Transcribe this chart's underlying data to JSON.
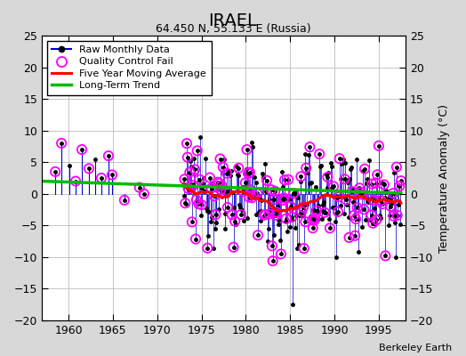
{
  "title": "IRAEL",
  "subtitle": "64.450 N, 55.133 E (Russia)",
  "ylabel_right": "Temperature Anomaly (°C)",
  "credit": "Berkeley Earth",
  "xlim": [
    1957,
    1998
  ],
  "ylim": [
    -20,
    25
  ],
  "yticks_left": [
    -20,
    -15,
    -10,
    -5,
    0,
    5,
    10,
    15,
    20,
    25
  ],
  "yticks_right": [
    -20,
    -15,
    -10,
    -5,
    0,
    5,
    10,
    15,
    20,
    25
  ],
  "xticks": [
    1960,
    1965,
    1970,
    1975,
    1980,
    1985,
    1990,
    1995
  ],
  "background_color": "#d8d8d8",
  "plot_bg_color": "#ffffff",
  "raw_line_color": "#0000cc",
  "raw_marker_color": "#000000",
  "qc_fail_color": "#ff00ff",
  "moving_avg_color": "#ff0000",
  "trend_color": "#00bb00",
  "seed_data": 12345,
  "seed_qc": 77
}
